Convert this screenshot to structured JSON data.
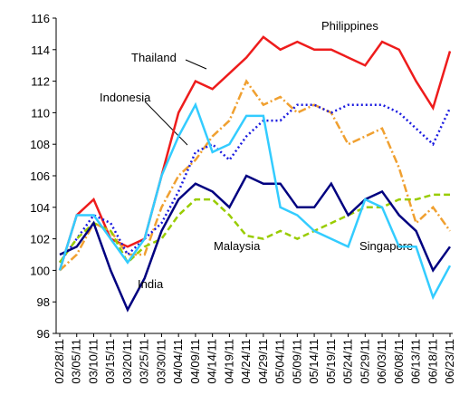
{
  "chart_data": {
    "type": "line",
    "categories": [
      "02/28/11",
      "03/05/11",
      "03/10/11",
      "03/15/11",
      "03/20/11",
      "03/25/11",
      "03/30/11",
      "04/04/11",
      "04/09/11",
      "04/14/11",
      "04/19/11",
      "04/24/11",
      "04/29/11",
      "05/04/11",
      "05/09/11",
      "05/14/11",
      "05/19/11",
      "05/24/11",
      "05/29/11",
      "06/03/11",
      "06/08/11",
      "06/13/11",
      "06/18/11",
      "06/23/11"
    ],
    "series": [
      {
        "name": "Philippines",
        "color": "#ee1c1c",
        "style": "solid",
        "values": [
          100,
          103.5,
          104.5,
          102,
          101.5,
          102,
          106,
          110,
          112,
          111.5,
          112.5,
          113.5,
          114.8,
          114,
          114.5,
          114,
          114,
          113.5,
          113,
          114.5,
          114,
          112,
          110.3,
          113.9
        ]
      },
      {
        "name": "Thailand",
        "color": "#f0a030",
        "style": "dashdot",
        "values": [
          100,
          101,
          103,
          102.5,
          101,
          101,
          104,
          106,
          107,
          108.5,
          109.5,
          112,
          110.5,
          111,
          110,
          110.5,
          110,
          108,
          108.5,
          109,
          106.5,
          103,
          104,
          102.5
        ]
      },
      {
        "name": "Indonesia",
        "color": "#1a1ae0",
        "style": "dotted",
        "values": [
          100.5,
          102,
          103.5,
          103,
          101,
          102,
          103,
          105,
          107.5,
          108,
          107,
          108.5,
          109.5,
          109.5,
          110.5,
          110.5,
          110,
          110.5,
          110.5,
          110.5,
          110,
          109,
          108,
          110.3
        ]
      },
      {
        "name": "Malaysia",
        "color": "#99cc00",
        "style": "dashed",
        "values": [
          100.5,
          102,
          103,
          102.5,
          100.5,
          101.5,
          102,
          103.5,
          104.5,
          104.5,
          103.5,
          102.2,
          102,
          102.5,
          102,
          102.5,
          103,
          103.5,
          104,
          104,
          104.5,
          104.5,
          104.8,
          104.8
        ]
      },
      {
        "name": "Singapore",
        "color": "#000080",
        "style": "solid",
        "values": [
          101,
          101.5,
          103,
          100,
          97.5,
          99.5,
          102.5,
          104.5,
          105.5,
          105,
          104,
          106,
          105.5,
          105.5,
          104,
          104,
          105.5,
          103.5,
          104.5,
          105,
          103.5,
          102.5,
          100,
          101.5
        ]
      },
      {
        "name": "India",
        "color": "#33ccff",
        "style": "solid",
        "values": [
          100,
          103.5,
          103.5,
          102,
          100.5,
          102,
          106,
          108.5,
          110.5,
          107.5,
          108,
          109.8,
          109.8,
          104,
          103.5,
          102.5,
          102,
          101.5,
          104.5,
          104,
          101.5,
          101.5,
          98.3,
          100.3
        ]
      }
    ],
    "ylim": [
      96,
      116
    ],
    "yticks": [
      96,
      98,
      100,
      102,
      104,
      106,
      108,
      110,
      112,
      114,
      116
    ]
  }
}
